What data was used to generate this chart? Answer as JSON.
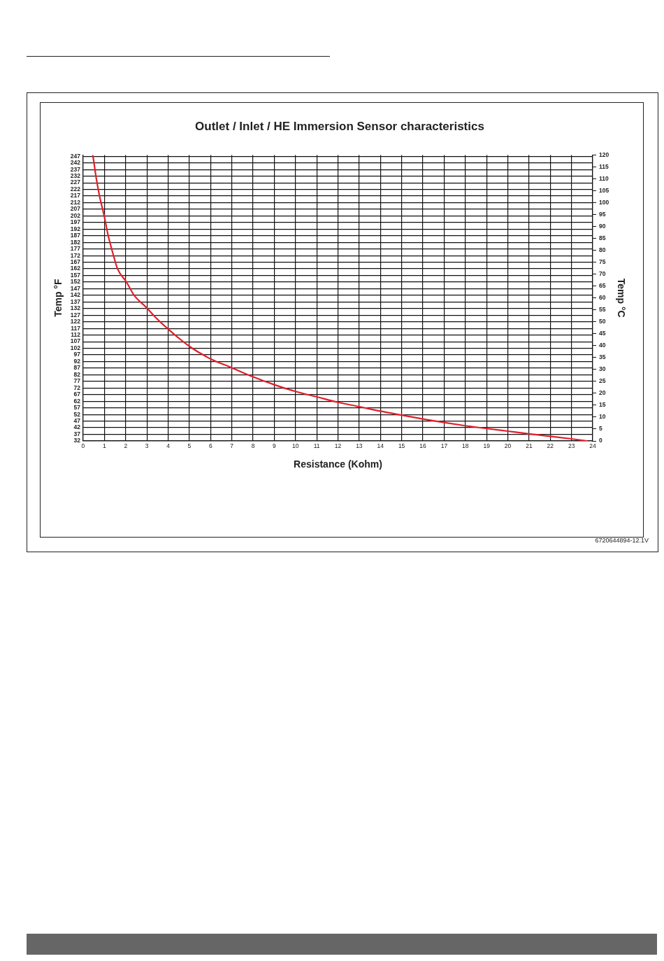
{
  "chart_data": {
    "type": "line",
    "title": "Outlet / Inlet / HE Immersion Sensor characteristics",
    "xlabel": "Resistance (Kohm)",
    "ylabel": "Temp °F",
    "y2label": "Temp °C",
    "annotations": [
      "6720644894-12.1V"
    ],
    "series": [
      {
        "color": "#e0202c",
        "x": [
          0.44,
          0.46,
          0.6,
          0.77,
          0.99,
          1.18,
          1.43,
          1.62,
          2.04,
          2.4,
          3,
          3.37,
          4,
          5,
          6,
          7,
          7.97,
          9,
          10,
          11,
          12,
          13,
          14,
          15,
          16,
          17,
          18,
          19,
          20,
          21,
          22,
          23,
          23.75
        ],
        "values": [
          248,
          247,
          232,
          217,
          202,
          187,
          172,
          162,
          152,
          142,
          132.5,
          126,
          116.5,
          103.5,
          94,
          87.3,
          80.6,
          74.5,
          69.4,
          65.3,
          61.2,
          57.9,
          54.5,
          51.5,
          48.6,
          45.9,
          43.5,
          41.4,
          39.4,
          37.4,
          35.5,
          33.6,
          32
        ]
      }
    ],
    "xlim": [
      0,
      24
    ],
    "xticks": [
      0,
      1,
      2,
      3,
      4,
      5,
      6,
      7,
      8,
      9,
      10,
      11,
      12,
      13,
      14,
      15,
      16,
      17,
      18,
      19,
      20,
      21,
      22,
      23,
      24
    ],
    "ylim": [
      32,
      248
    ],
    "yticks": [
      32,
      37,
      42,
      47,
      52,
      57,
      62,
      67,
      72,
      77,
      82,
      87,
      92,
      97,
      102,
      107,
      112,
      117,
      122,
      127,
      132,
      137,
      142,
      147,
      152,
      157,
      162,
      167,
      172,
      177,
      182,
      187,
      192,
      197,
      202,
      207,
      212,
      217,
      222,
      227,
      232,
      237,
      242,
      247
    ],
    "y2lim": [
      0,
      120
    ],
    "y2ticks": [
      0,
      5,
      10,
      15,
      20,
      25,
      30,
      35,
      40,
      45,
      50,
      55,
      60,
      65,
      70,
      75,
      80,
      85,
      90,
      95,
      100,
      105,
      110,
      115,
      120
    ],
    "grid": true,
    "legend": false,
    "marker": "none",
    "line_style": "solid"
  }
}
